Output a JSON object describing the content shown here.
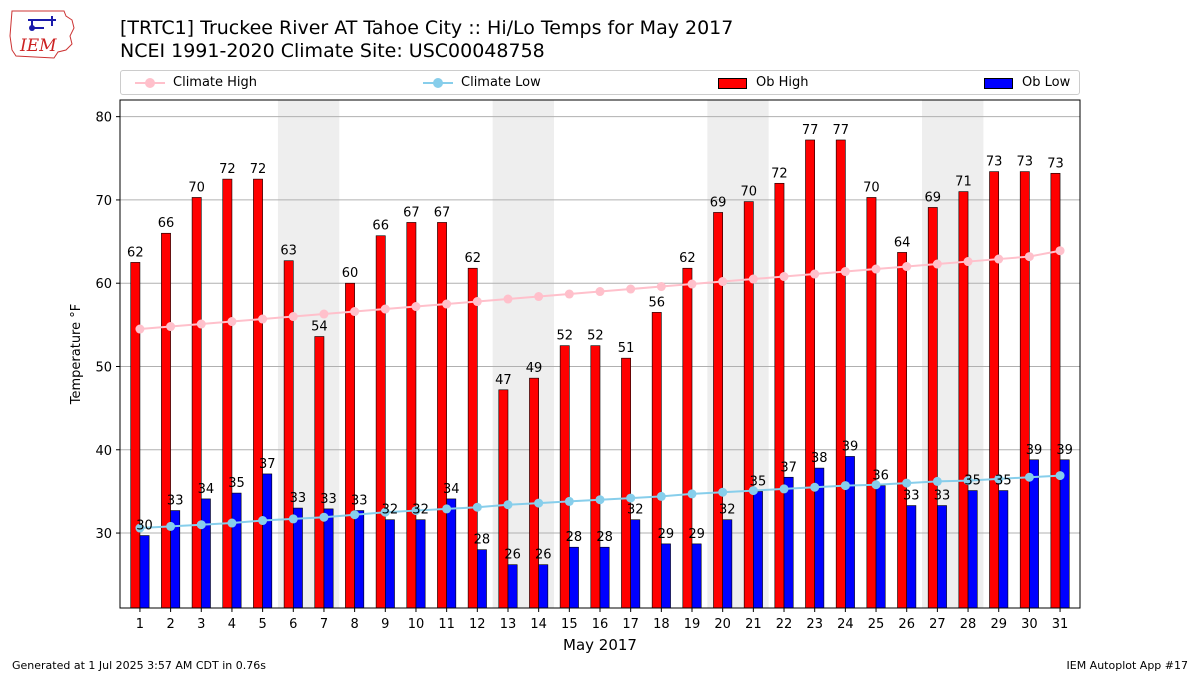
{
  "header": {
    "logo_text": "IEM",
    "title_line1": "[TRTC1] Truckee River  AT Tahoe City :: Hi/Lo Temps for May 2017",
    "title_line2": "NCEI 1991-2020 Climate Site: USC00048758"
  },
  "legend": {
    "climate_high": "Climate High",
    "climate_low": "Climate Low",
    "ob_high": "Ob High",
    "ob_low": "Ob Low"
  },
  "colors": {
    "ob_high": "#ff0000",
    "ob_low": "#0000ff",
    "climate_high": "#ffc0cb",
    "climate_low": "#87ceeb",
    "weekend_shade": "#eeeeee",
    "grid": "#b0b0b0"
  },
  "footer": {
    "left": "Generated at 1 Jul 2025 3:57 AM CDT in 0.76s",
    "right": "IEM Autoplot App #17"
  },
  "chart_data": {
    "type": "bar",
    "xlabel": "May 2017",
    "ylabel": "Temperature °F",
    "ylim": [
      21,
      82
    ],
    "yticks": [
      30,
      40,
      50,
      60,
      70,
      80
    ],
    "grid": true,
    "legend_position": "top",
    "categories": [
      "1",
      "2",
      "3",
      "4",
      "5",
      "6",
      "7",
      "8",
      "9",
      "10",
      "11",
      "12",
      "13",
      "14",
      "15",
      "16",
      "17",
      "18",
      "19",
      "20",
      "21",
      "22",
      "23",
      "24",
      "25",
      "26",
      "27",
      "28",
      "29",
      "30",
      "31"
    ],
    "weekend_days": [
      6,
      7,
      13,
      14,
      20,
      21,
      27,
      28
    ],
    "series": [
      {
        "name": "Ob High",
        "kind": "bar",
        "values": [
          62.5,
          66,
          70.3,
          72.5,
          72.5,
          62.7,
          53.6,
          60,
          65.7,
          67.3,
          67.3,
          61.8,
          47.2,
          48.6,
          52.5,
          52.5,
          51,
          56.5,
          61.8,
          68.5,
          69.8,
          72,
          77.2,
          77.2,
          70.3,
          63.7,
          69.1,
          71,
          73.4,
          73.4,
          73.2
        ],
        "labels": [
          "62",
          "66",
          "70",
          "72",
          "72",
          "63",
          "54",
          "60",
          "66",
          "67",
          "67",
          "62",
          "47",
          "49",
          "52",
          "52",
          "51",
          "56",
          "62",
          "69",
          "70",
          "72",
          "77",
          "77",
          "70",
          "64",
          "69",
          "71",
          "73",
          "73",
          "73"
        ]
      },
      {
        "name": "Ob Low",
        "kind": "bar",
        "values": [
          29.7,
          32.7,
          34.1,
          34.8,
          37.1,
          33,
          32.9,
          32.7,
          31.6,
          31.6,
          34.1,
          28,
          26.2,
          26.2,
          28.3,
          28.3,
          31.6,
          28.7,
          28.7,
          31.6,
          35,
          36.7,
          37.8,
          39.2,
          35.7,
          33.3,
          33.3,
          35.1,
          35.1,
          38.8,
          38.8
        ],
        "labels": [
          "30",
          "33",
          "34",
          "35",
          "37",
          "33",
          "33",
          "33",
          "32",
          "32",
          "34",
          "28",
          "26",
          "26",
          "28",
          "28",
          "32",
          "29",
          "29",
          "32",
          "35",
          "37",
          "38",
          "39",
          "36",
          "33",
          "33",
          "35",
          "35",
          "39",
          "39"
        ]
      },
      {
        "name": "Climate High",
        "kind": "line",
        "values": [
          54.5,
          54.8,
          55.1,
          55.4,
          55.7,
          56.0,
          56.3,
          56.6,
          56.9,
          57.2,
          57.5,
          57.8,
          58.1,
          58.4,
          58.7,
          59.0,
          59.3,
          59.6,
          59.9,
          60.2,
          60.5,
          60.8,
          61.1,
          61.4,
          61.7,
          62.0,
          62.3,
          62.6,
          62.9,
          63.2,
          63.9
        ]
      },
      {
        "name": "Climate Low",
        "kind": "line",
        "values": [
          30.6,
          30.8,
          31.0,
          31.2,
          31.5,
          31.7,
          31.9,
          32.2,
          32.5,
          32.7,
          32.9,
          33.1,
          33.4,
          33.6,
          33.8,
          34.0,
          34.2,
          34.4,
          34.7,
          34.9,
          35.1,
          35.3,
          35.5,
          35.7,
          35.8,
          36.0,
          36.2,
          36.3,
          36.5,
          36.7,
          36.9
        ]
      }
    ]
  }
}
